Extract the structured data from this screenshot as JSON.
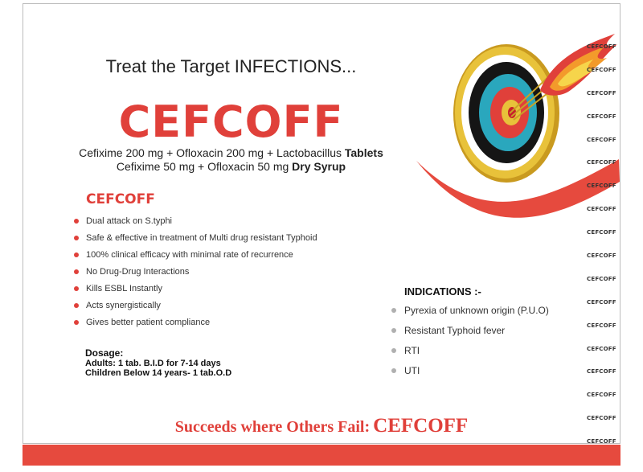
{
  "header": {
    "tagline": "Treat the Target INFECTIONS...",
    "brand": "CEFCOFF"
  },
  "composition": {
    "line1_text": "Cefixime 200 mg + Ofloxacin 200 mg + Lactobacillus",
    "line1_form": "Tablets",
    "line2_text": "Cefixime 50 mg + Ofloxacin 50 mg",
    "line2_form": "Dry Syrup"
  },
  "features": {
    "title": "CEFCOFF",
    "items": [
      "Dual attack on S.typhi",
      "Safe & effective in treatment of Multi drug resistant Typhoid",
      "100% clinical efficacy with minimal rate of recurrence",
      "No Drug-Drug Interactions",
      "Kills ESBL Instantly",
      "Acts synergistically",
      "Gives better patient compliance"
    ]
  },
  "dosage": {
    "title": "Dosage:",
    "adults": "Adults: 1 tab. B.I.D for 7-14 days",
    "children": "Children Below 14 years- 1 tab.O.D"
  },
  "indications": {
    "title": "INDICATIONS :-",
    "items": [
      "Pyrexia of unknown origin (P.U.O)",
      "Resistant Typhoid fever",
      "RTI",
      "UTI"
    ]
  },
  "footer": {
    "slogan": "Succeeds where Others Fail:",
    "brand": "CEFCOFF"
  },
  "side_strip": {
    "items": [
      "CEFCOFF",
      "CEFCOFF",
      "CEFCOFF",
      "CEFCOFF",
      "CEFCOFF",
      "CEFCOFF",
      "CEFCOFF",
      "CEFCOFF",
      "CEFCOFF",
      "CEFCOFF",
      "CEFCOFF",
      "CEFCOFF",
      "CEFCOFF",
      "CEFCOFF",
      "CEFCOFF",
      "CEFCOFF",
      "CEFCOFF",
      "CEFCOFF"
    ]
  },
  "colors": {
    "brand_red": "#e0403a",
    "bar_red": "#e64a3e",
    "target_gold": "#e8c23a",
    "target_teal": "#2aa7bd",
    "target_black": "#151515"
  }
}
